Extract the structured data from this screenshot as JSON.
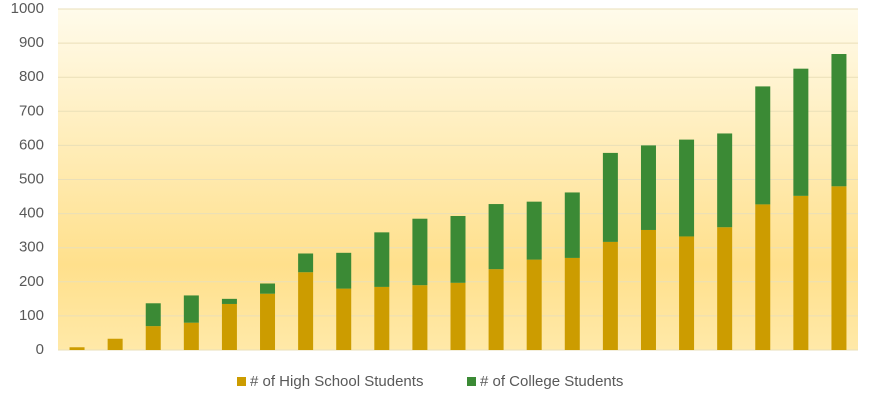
{
  "chart_data": {
    "type": "stacked_bar",
    "categories": [
      null,
      null,
      null,
      null,
      null,
      null,
      null,
      null,
      null,
      null,
      null,
      null,
      null,
      null,
      null,
      null,
      null,
      null,
      null,
      null,
      null
    ],
    "series": [
      {
        "name": "# of High School Students",
        "color": "#cc9c00",
        "values": [
          8,
          33,
          70,
          80,
          135,
          165,
          228,
          180,
          185,
          190,
          197,
          237,
          265,
          270,
          317,
          352,
          333,
          360,
          427,
          452,
          480
        ]
      },
      {
        "name": "# of College Students",
        "color": "#3b8a35",
        "values": [
          0,
          0,
          67,
          80,
          15,
          30,
          55,
          105,
          160,
          195,
          196,
          191,
          170,
          192,
          261,
          248,
          284,
          275,
          346,
          373,
          388
        ]
      }
    ],
    "ylim": [
      0,
      1000
    ],
    "yticks": [
      0,
      100,
      200,
      300,
      400,
      500,
      600,
      700,
      800,
      900,
      1000
    ],
    "grid": true,
    "legend": "bottom"
  }
}
